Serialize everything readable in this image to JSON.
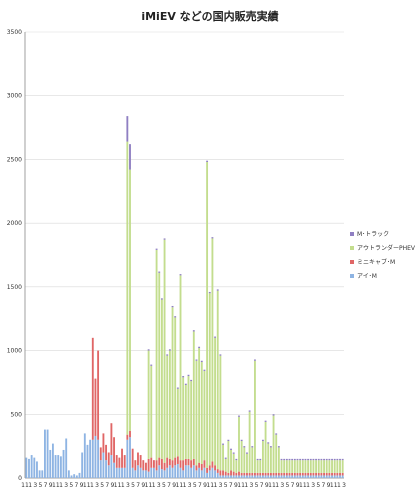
{
  "chart_data": {
    "type": "bar",
    "stacked": true,
    "title": "iMiEV などの国内販売実績",
    "xlabel": "",
    "ylabel": "",
    "ylim": [
      0,
      3500
    ],
    "yticks": [
      0,
      500,
      1000,
      1500,
      2000,
      2500,
      3000,
      3500
    ],
    "grid": true,
    "legend_position": "right",
    "x_tick_labels": [
      "11",
      "1",
      "3",
      "5",
      "7",
      "9",
      "11",
      "1",
      "3",
      "5",
      "7",
      "9",
      "11",
      "1",
      "3",
      "5",
      "7",
      "9",
      "11",
      "1",
      "3",
      "5",
      "7",
      "9",
      "11",
      "1",
      "3",
      "5",
      "7",
      "9",
      "11",
      "1",
      "3",
      "5",
      "7",
      "9",
      "11",
      "1",
      "3",
      "5",
      "7",
      "9",
      "11",
      "1",
      "3",
      "5",
      "7",
      "9",
      "11",
      "1",
      "3",
      "5",
      "7",
      "9",
      "11",
      "1",
      "3",
      "5",
      "7",
      "9",
      "11",
      "1",
      "3"
    ],
    "series": [
      {
        "name": "アイ･M",
        "color": "#8eb4e3",
        "values": [
          160,
          150,
          180,
          160,
          130,
          60,
          60,
          380,
          380,
          220,
          270,
          180,
          180,
          170,
          220,
          310,
          60,
          20,
          30,
          20,
          40,
          200,
          350,
          260,
          300,
          300,
          330,
          300,
          140,
          200,
          140,
          100,
          180,
          120,
          80,
          80,
          80,
          80,
          300,
          320,
          80,
          60,
          100,
          80,
          60,
          60,
          50,
          80,
          80,
          60,
          100,
          70,
          60,
          80,
          100,
          80,
          100,
          110,
          80,
          60,
          100,
          100,
          80,
          100,
          60,
          80,
          60,
          80,
          40,
          60,
          80,
          60,
          40,
          20,
          20,
          20,
          20,
          20,
          20,
          20,
          20,
          20,
          20,
          20,
          20,
          20,
          20,
          20,
          20,
          20,
          20,
          20,
          20,
          20,
          20,
          20,
          20,
          20,
          20,
          20,
          20,
          20,
          20,
          20,
          20,
          20,
          20,
          20,
          20,
          20,
          20,
          20,
          20,
          20,
          20,
          20,
          20,
          20,
          20,
          20
        ]
      },
      {
        "name": "ミニキャブ･M",
        "color": "#e06666",
        "values": [
          0,
          0,
          0,
          0,
          0,
          0,
          0,
          0,
          0,
          0,
          0,
          0,
          0,
          0,
          0,
          0,
          0,
          0,
          0,
          0,
          0,
          0,
          0,
          0,
          0,
          800,
          450,
          700,
          100,
          150,
          120,
          100,
          250,
          200,
          100,
          80,
          150,
          100,
          40,
          50,
          150,
          80,
          100,
          100,
          80,
          60,
          100,
          80,
          60,
          80,
          60,
          80,
          60,
          80,
          50,
          60,
          60,
          60,
          60,
          80,
          50,
          50,
          60,
          50,
          40,
          40,
          50,
          60,
          40,
          40,
          50,
          40,
          30,
          40,
          40,
          30,
          20,
          40,
          30,
          20,
          30,
          20,
          20,
          20,
          20,
          20,
          20,
          20,
          20,
          20,
          20,
          20,
          20,
          20,
          20,
          20,
          20,
          20,
          20,
          20,
          20,
          20,
          20,
          20,
          20,
          20,
          20,
          20,
          20,
          20,
          20,
          20,
          20,
          20,
          20,
          20,
          20,
          20,
          20,
          20
        ]
      },
      {
        "name": "アウトランダーPHEV",
        "color": "#c3dd8e",
        "values": [
          0,
          0,
          0,
          0,
          0,
          0,
          0,
          0,
          0,
          0,
          0,
          0,
          0,
          0,
          0,
          0,
          0,
          0,
          0,
          0,
          0,
          0,
          0,
          0,
          0,
          0,
          0,
          0,
          0,
          0,
          0,
          0,
          0,
          0,
          0,
          0,
          0,
          0,
          2300,
          2050,
          0,
          0,
          0,
          0,
          0,
          0,
          850,
          720,
          0,
          1650,
          1450,
          1250,
          1750,
          800,
          850,
          1200,
          1100,
          530,
          1450,
          650,
          580,
          650,
          620,
          1000,
          820,
          900,
          800,
          700,
          2400,
          1350,
          1750,
          1000,
          1400,
          900,
          200,
          100,
          250,
          160,
          140,
          100,
          430,
          250,
          200,
          150,
          480,
          200,
          880,
          100,
          100,
          250,
          400,
          230,
          200,
          450,
          300,
          200,
          100,
          100,
          100,
          100,
          100,
          100,
          100,
          100,
          100,
          100,
          100,
          100,
          100,
          100,
          100,
          100,
          100,
          100,
          100,
          100,
          100,
          100,
          100,
          100
        ]
      },
      {
        "name": "M･トラック",
        "color": "#8f7fc2",
        "values": [
          0,
          0,
          0,
          0,
          0,
          0,
          0,
          0,
          0,
          0,
          0,
          0,
          0,
          0,
          0,
          0,
          0,
          0,
          0,
          0,
          0,
          0,
          0,
          0,
          0,
          0,
          0,
          0,
          0,
          0,
          0,
          0,
          0,
          0,
          0,
          0,
          0,
          0,
          200,
          200,
          0,
          0,
          0,
          0,
          0,
          0,
          10,
          10,
          0,
          10,
          10,
          10,
          10,
          10,
          10,
          10,
          10,
          10,
          10,
          10,
          10,
          10,
          10,
          10,
          10,
          10,
          10,
          10,
          10,
          10,
          10,
          10,
          10,
          10,
          10,
          10,
          10,
          10,
          10,
          10,
          10,
          10,
          10,
          10,
          10,
          10,
          10,
          10,
          10,
          10,
          10,
          10,
          10,
          10,
          10,
          10,
          10,
          10,
          10,
          10,
          10,
          10,
          10,
          10,
          10,
          10,
          10,
          10,
          10,
          10,
          10,
          10,
          10,
          10,
          10,
          10,
          10,
          10,
          10,
          10
        ]
      }
    ]
  }
}
